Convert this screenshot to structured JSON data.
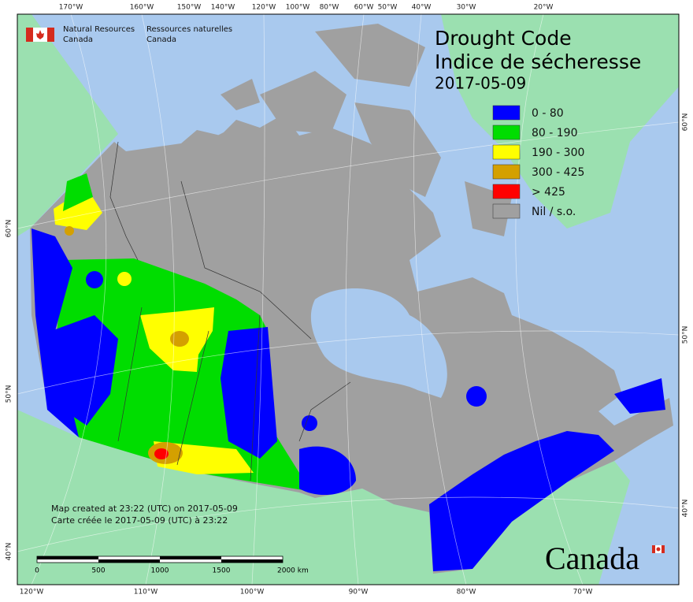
{
  "header": {
    "agency_en": [
      "Natural Resources",
      "Canada"
    ],
    "agency_fr": [
      "Ressources naturelles",
      "Canada"
    ]
  },
  "title": {
    "en": "Drought Code",
    "fr": "Indice de sécheresse",
    "date": "2017-05-09"
  },
  "legend": [
    {
      "label": "0 - 80",
      "color": "#0000ff"
    },
    {
      "label": "80 - 190",
      "color": "#00dd00"
    },
    {
      "label": "190 - 300",
      "color": "#ffff00"
    },
    {
      "label": "300 - 425",
      "color": "#d4a000"
    },
    {
      "label": "> 425",
      "color": "#ff0000"
    },
    {
      "label": "Nil / s.o.",
      "color": "#a0a0a0"
    }
  ],
  "graticule": {
    "top": [
      "170°W",
      "160°W",
      "150°W",
      "140°W",
      "120°W",
      "100°W",
      "80°W",
      "60°W",
      "50°W",
      "40°W",
      "30°W",
      "20°W"
    ],
    "bottom": [
      "120°W",
      "110°W",
      "100°W",
      "90°W",
      "80°W",
      "70°W"
    ],
    "left": [
      "60°N",
      "50°N",
      "40°N"
    ],
    "right": [
      "60°N",
      "50°N",
      "40°N"
    ]
  },
  "notes": [
    "Map created at 23:22 (UTC) on 2017-05-09",
    "Carte créée le 2017-05-09 (UTC) à 23:22"
  ],
  "scale_bar": {
    "labels": [
      "0",
      "500",
      "1000",
      "1500",
      "2000 km"
    ]
  },
  "wordmark": "Canada"
}
